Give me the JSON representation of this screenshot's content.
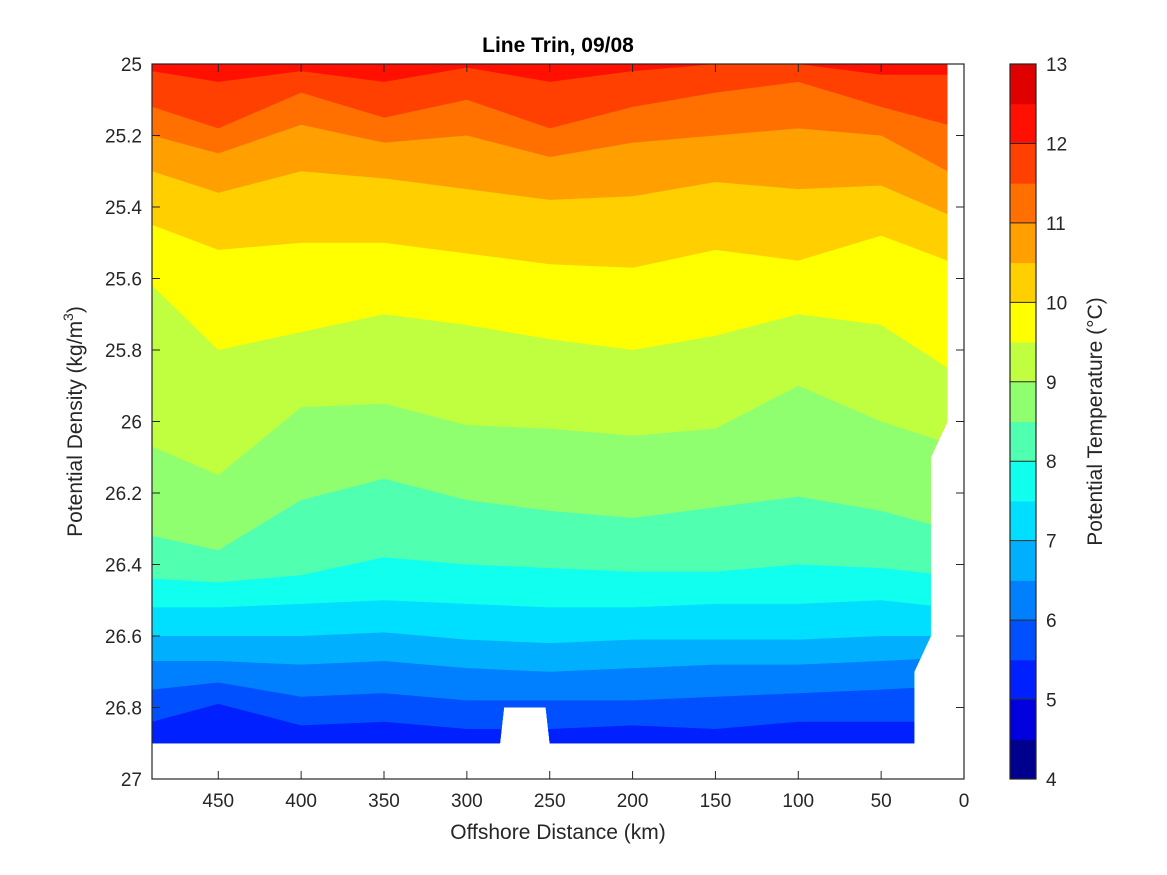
{
  "chart_data": {
    "type": "filled-contour",
    "title": "Line Trin, 09/08",
    "xlabel": "Offshore Distance (km)",
    "ylabel_main": "Potential Density (kg/m",
    "ylabel_sup": "3",
    "ylabel_close": ")",
    "xlim": [
      490,
      0
    ],
    "x_reversed": true,
    "ylim": [
      25,
      27
    ],
    "y_reversed": true,
    "x_ticks": [
      450,
      400,
      350,
      300,
      250,
      200,
      150,
      100,
      50,
      0
    ],
    "y_ticks": [
      25,
      25.2,
      25.4,
      25.6,
      25.8,
      26,
      26.2,
      26.4,
      26.6,
      26.8,
      27
    ],
    "x_tick_labels": [
      "450",
      "400",
      "350",
      "300",
      "250",
      "200",
      "150",
      "100",
      "50",
      "0"
    ],
    "y_tick_labels": [
      "25",
      "25.2",
      "25.4",
      "25.6",
      "25.8",
      "26",
      "26.2",
      "26.4",
      "26.6",
      "26.8",
      "27"
    ],
    "colorbar": {
      "label": "Potential Temperature (°C)",
      "range": [
        4,
        13
      ],
      "levels": [
        4,
        4.5,
        5,
        5.5,
        6,
        6.5,
        7,
        7.5,
        8,
        8.5,
        9,
        9.5,
        10,
        10.5,
        11,
        11.5,
        12,
        12.5,
        13
      ],
      "ticks": [
        4,
        5,
        6,
        7,
        8,
        9,
        10,
        11,
        12,
        13
      ],
      "tick_labels": [
        "4",
        "5",
        "6",
        "7",
        "8",
        "9",
        "10",
        "11",
        "12",
        "13"
      ],
      "colors": [
        "#00008f",
        "#0000df",
        "#0020ff",
        "#0050ff",
        "#0080ff",
        "#00b0ff",
        "#00dfff",
        "#10ffef",
        "#50ffaf",
        "#8fff70",
        "#bfff3f",
        "#ffff00",
        "#ffcf00",
        "#ff9f00",
        "#ff7000",
        "#ff4000",
        "#ff1000",
        "#df0000"
      ]
    },
    "data_extent": {
      "x": [
        490,
        10
      ],
      "y_bottom": 26.9,
      "notch_x": [
        280,
        265,
        250
      ],
      "notch_top": 26.8
    },
    "isotherms": [
      {
        "level": 12.5,
        "x": [
          490,
          450,
          400,
          350,
          300,
          250,
          200,
          150,
          100,
          50,
          10
        ],
        "y": [
          25.0,
          25.0,
          25.0,
          25.0,
          25.0,
          25.0,
          25.0,
          25.0,
          25.0,
          25.0,
          25.0
        ]
      },
      {
        "level": 12,
        "x": [
          490,
          450,
          400,
          350,
          300,
          250,
          200,
          150,
          100,
          50,
          10
        ],
        "y": [
          25.02,
          25.05,
          25.02,
          25.05,
          25.01,
          25.05,
          25.02,
          25.0,
          25.0,
          25.03,
          25.03
        ]
      },
      {
        "level": 11.5,
        "x": [
          490,
          450,
          400,
          350,
          300,
          250,
          200,
          150,
          100,
          50,
          10
        ],
        "y": [
          25.12,
          25.18,
          25.08,
          25.15,
          25.1,
          25.18,
          25.12,
          25.08,
          25.05,
          25.12,
          25.17
        ]
      },
      {
        "level": 11,
        "x": [
          490,
          450,
          400,
          350,
          300,
          250,
          200,
          150,
          100,
          50,
          10
        ],
        "y": [
          25.2,
          25.25,
          25.17,
          25.22,
          25.2,
          25.26,
          25.22,
          25.2,
          25.18,
          25.2,
          25.3
        ]
      },
      {
        "level": 10.5,
        "x": [
          490,
          450,
          400,
          350,
          300,
          250,
          200,
          150,
          100,
          50,
          10
        ],
        "y": [
          25.3,
          25.36,
          25.3,
          25.32,
          25.35,
          25.38,
          25.37,
          25.33,
          25.35,
          25.34,
          25.42
        ]
      },
      {
        "level": 10,
        "x": [
          490,
          450,
          400,
          350,
          300,
          250,
          200,
          150,
          100,
          50,
          10
        ],
        "y": [
          25.45,
          25.52,
          25.5,
          25.5,
          25.53,
          25.56,
          25.57,
          25.52,
          25.55,
          25.48,
          25.55
        ]
      },
      {
        "level": 9.5,
        "x": [
          490,
          450,
          400,
          350,
          300,
          250,
          200,
          150,
          100,
          50,
          10
        ],
        "y": [
          25.62,
          25.8,
          25.75,
          25.7,
          25.73,
          25.77,
          25.8,
          25.76,
          25.7,
          25.73,
          25.85
        ]
      },
      {
        "level": 9,
        "x": [
          490,
          450,
          400,
          350,
          300,
          250,
          200,
          150,
          100,
          50,
          10
        ],
        "y": [
          26.07,
          26.15,
          25.96,
          25.95,
          26.01,
          26.02,
          26.04,
          26.02,
          25.9,
          26.0,
          26.06
        ]
      },
      {
        "level": 8.5,
        "x": [
          490,
          450,
          400,
          350,
          300,
          250,
          200,
          150,
          100,
          50,
          10
        ],
        "y": [
          26.32,
          26.36,
          26.22,
          26.16,
          26.22,
          26.25,
          26.27,
          26.24,
          26.21,
          26.25,
          26.3
        ]
      },
      {
        "level": 8,
        "x": [
          490,
          450,
          400,
          350,
          300,
          250,
          200,
          150,
          100,
          50,
          10
        ],
        "y": [
          26.44,
          26.45,
          26.43,
          26.38,
          26.4,
          26.41,
          26.42,
          26.42,
          26.4,
          26.41,
          26.43
        ]
      },
      {
        "level": 7.5,
        "x": [
          490,
          450,
          400,
          350,
          300,
          250,
          200,
          150,
          100,
          50,
          10
        ],
        "y": [
          26.52,
          26.52,
          26.51,
          26.5,
          26.51,
          26.52,
          26.52,
          26.51,
          26.51,
          26.5,
          26.52
        ]
      },
      {
        "level": 7,
        "x": [
          490,
          450,
          400,
          350,
          300,
          250,
          200,
          150,
          100,
          50,
          10
        ],
        "y": [
          26.6,
          26.6,
          26.6,
          26.59,
          26.61,
          26.62,
          26.61,
          26.61,
          26.61,
          26.6,
          26.6
        ]
      },
      {
        "level": 6.5,
        "x": [
          490,
          450,
          400,
          350,
          300,
          250,
          200,
          150,
          100,
          50,
          10
        ],
        "y": [
          26.67,
          26.67,
          26.68,
          26.67,
          26.69,
          26.7,
          26.69,
          26.68,
          26.68,
          26.67,
          26.66
        ]
      },
      {
        "level": 6,
        "x": [
          490,
          450,
          400,
          350,
          300,
          250,
          200,
          150,
          100,
          50,
          10
        ],
        "y": [
          26.75,
          26.73,
          26.77,
          26.76,
          26.78,
          26.78,
          26.78,
          26.77,
          26.76,
          26.75,
          26.74
        ]
      },
      {
        "level": 5.5,
        "x": [
          490,
          450,
          400,
          350,
          300,
          250,
          200,
          150,
          100,
          50,
          10
        ],
        "y": [
          26.84,
          26.79,
          26.85,
          26.84,
          26.86,
          26.86,
          26.85,
          26.86,
          26.84,
          26.84,
          26.84
        ]
      },
      {
        "level": 5,
        "x": [
          490,
          450,
          400,
          350,
          300,
          250,
          200,
          150,
          100,
          50,
          10
        ],
        "y": [
          26.9,
          26.9,
          26.9,
          26.9,
          26.9,
          26.9,
          26.9,
          26.9,
          26.9,
          26.9,
          26.9
        ]
      }
    ]
  }
}
